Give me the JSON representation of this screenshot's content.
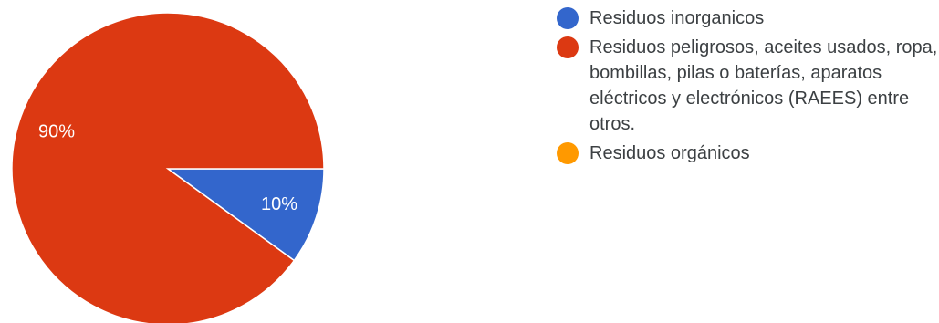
{
  "chart_data": {
    "type": "pie",
    "slices": [
      {
        "label": "Residuos inorganicos",
        "value": 10,
        "color": "#3366cc",
        "data_label": "10%"
      },
      {
        "label": "Residuos peligrosos, aceites usados, ropa, bombillas, pilas o baterías, aparatos eléctricos y electrónicos (RAEES) entre otros.",
        "value": 90,
        "color": "#dc3912",
        "data_label": "90%"
      },
      {
        "label": "Residuos orgánicos",
        "value": 0,
        "color": "#ff9900",
        "data_label": ""
      }
    ],
    "legend_position": "right"
  }
}
